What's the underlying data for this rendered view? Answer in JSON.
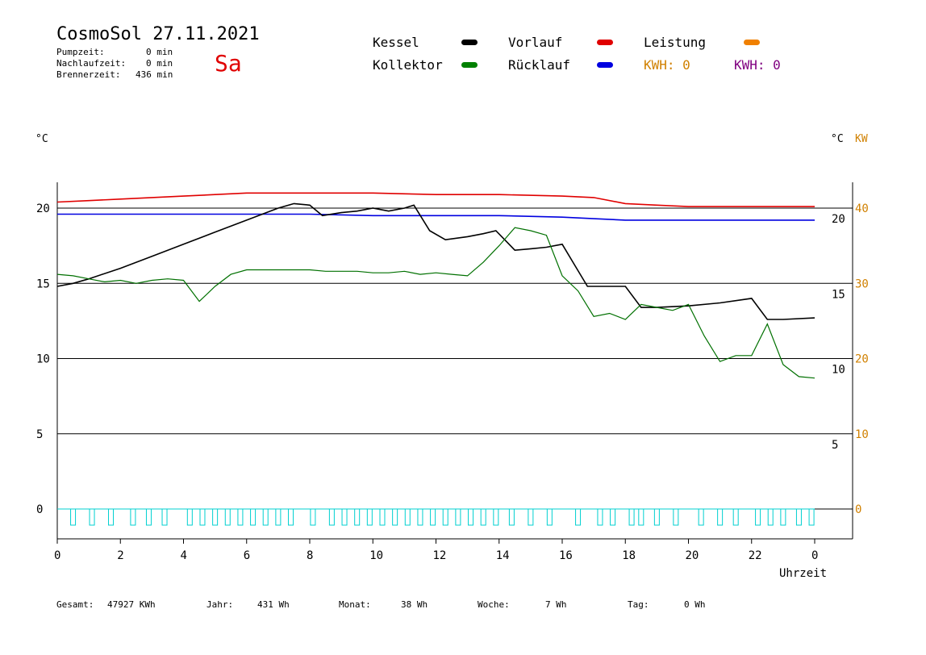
{
  "header": {
    "title": "CosmoSol 27.11.2021",
    "day": "Sa",
    "stats": [
      {
        "label": "Pumpzeit:",
        "value": "0 min"
      },
      {
        "label": "Nachlaufzeit:",
        "value": "0 min"
      },
      {
        "label": "Brennerzeit:",
        "value": "436 min"
      }
    ]
  },
  "legend": {
    "kessel": {
      "label": "Kessel",
      "color": "#000000"
    },
    "vorlauf": {
      "label": "Vorlauf",
      "color": "#e00000"
    },
    "leistung": {
      "label": "Leistung",
      "color": "#f08000"
    },
    "kollektor": {
      "label": "Kollektor",
      "color": "#008000"
    },
    "ruecklauf": {
      "label": "Rücklauf",
      "color": "#0000e0"
    },
    "kwh1": "KWH: 0",
    "kwh2": "KWH: 0",
    "kwh1_color": "#d08000",
    "kwh2_color": "#800080"
  },
  "footer": [
    {
      "label": "Gesamt:",
      "value": "47927 KWh"
    },
    {
      "label": "Jahr:",
      "value": "431 Wh"
    },
    {
      "label": "Monat:",
      "value": "38 Wh"
    },
    {
      "label": "Woche:",
      "value": "7 Wh"
    },
    {
      "label": "Tag:",
      "value": "0 Wh"
    }
  ],
  "chart_data": {
    "type": "line",
    "left_axis_unit": "°C",
    "right_axis_unit_1": "°C",
    "right_axis_unit_2": "KW",
    "xlabel": "Uhrzeit",
    "xlim": [
      0,
      24
    ],
    "x_ticks": [
      "0",
      "2",
      "4",
      "6",
      "8",
      "10",
      "12",
      "14",
      "16",
      "18",
      "20",
      "22",
      "0"
    ],
    "ylim": [
      -1.5,
      22
    ],
    "y_left_ticks": [
      0,
      5,
      10,
      15,
      20
    ],
    "y_right_inner_ticks": [
      5,
      10,
      15,
      20
    ],
    "y_right_kw_ticks": [
      0,
      10,
      20,
      30,
      40
    ],
    "grid": "horizontal",
    "series": [
      {
        "name": "Vorlauf",
        "color": "#e00000",
        "x": [
          0,
          1,
          2,
          4,
          5,
          6,
          8,
          10,
          12,
          14,
          16,
          17,
          18,
          19,
          20,
          21,
          22,
          24
        ],
        "y": [
          20.4,
          20.5,
          20.6,
          20.8,
          20.9,
          21.0,
          21.0,
          21.0,
          20.9,
          20.9,
          20.8,
          20.7,
          20.3,
          20.2,
          20.1,
          20.1,
          20.1,
          20.1
        ]
      },
      {
        "name": "Rücklauf",
        "color": "#0000e0",
        "x": [
          0,
          2,
          4,
          6,
          8,
          10,
          12,
          14,
          16,
          17,
          18,
          20,
          22,
          24
        ],
        "y": [
          19.6,
          19.6,
          19.6,
          19.6,
          19.6,
          19.5,
          19.5,
          19.5,
          19.4,
          19.3,
          19.2,
          19.2,
          19.2,
          19.2
        ]
      },
      {
        "name": "Kessel",
        "color": "#000000",
        "x": [
          0,
          0.5,
          1,
          2,
          3,
          4,
          5,
          6,
          7,
          7.5,
          8,
          8.4,
          9,
          9.5,
          10,
          10.5,
          11,
          11.3,
          11.8,
          12.3,
          13,
          13.5,
          13.9,
          14.5,
          15,
          15.5,
          16,
          16.4,
          16.8,
          17.5,
          18,
          18.5,
          19,
          20,
          21,
          22,
          22.5,
          23,
          24
        ],
        "y": [
          14.8,
          15.0,
          15.3,
          16.0,
          16.8,
          17.6,
          18.4,
          19.2,
          20.0,
          20.3,
          20.2,
          19.5,
          19.7,
          19.8,
          20.0,
          19.8,
          20.0,
          20.2,
          18.5,
          17.9,
          18.1,
          18.3,
          18.5,
          17.2,
          17.3,
          17.4,
          17.6,
          16.2,
          14.8,
          14.8,
          14.8,
          13.4,
          13.4,
          13.5,
          13.7,
          14.0,
          12.6,
          12.6,
          12.7
        ]
      },
      {
        "name": "Kollektor",
        "color": "#007000",
        "x": [
          0,
          0.5,
          1,
          1.5,
          2,
          2.5,
          3,
          3.5,
          4,
          4.5,
          5,
          5.5,
          6,
          6.5,
          7,
          7.5,
          8,
          8.5,
          9,
          9.5,
          10,
          10.5,
          11,
          11.5,
          12,
          12.5,
          13,
          13.5,
          14,
          14.5,
          15,
          15.5,
          16,
          16.5,
          17,
          17.5,
          18,
          18.5,
          19,
          19.5,
          20,
          20.5,
          21,
          21.5,
          22,
          22.5,
          23,
          23.5,
          24
        ],
        "y": [
          15.6,
          15.5,
          15.3,
          15.1,
          15.2,
          15.0,
          15.2,
          15.3,
          15.2,
          13.8,
          14.8,
          15.6,
          15.9,
          15.9,
          15.9,
          15.9,
          15.9,
          15.8,
          15.8,
          15.8,
          15.7,
          15.7,
          15.8,
          15.6,
          15.7,
          15.6,
          15.5,
          16.4,
          17.5,
          18.7,
          18.5,
          18.2,
          15.5,
          14.5,
          12.8,
          13.0,
          12.6,
          13.6,
          13.4,
          13.2,
          13.6,
          11.5,
          9.8,
          10.2,
          10.2,
          12.3,
          9.6,
          8.8,
          8.7
        ]
      }
    ],
    "pump_indicator": {
      "color": "#00d0d0",
      "pulses_x": [
        0.5,
        1.1,
        1.7,
        2.4,
        2.9,
        3.4,
        4.2,
        4.6,
        5.0,
        5.4,
        5.8,
        6.2,
        6.6,
        7.0,
        7.4,
        8.1,
        8.7,
        9.1,
        9.5,
        9.9,
        10.3,
        10.7,
        11.1,
        11.5,
        11.9,
        12.3,
        12.7,
        13.1,
        13.5,
        13.9,
        14.4,
        15.0,
        15.6,
        16.5,
        17.2,
        17.6,
        18.2,
        18.5,
        19.0,
        19.6,
        20.4,
        21.0,
        21.5,
        22.2,
        22.6,
        23.0,
        23.5,
        23.9
      ],
      "active_segments": [
        [
          0,
          24
        ]
      ]
    }
  }
}
